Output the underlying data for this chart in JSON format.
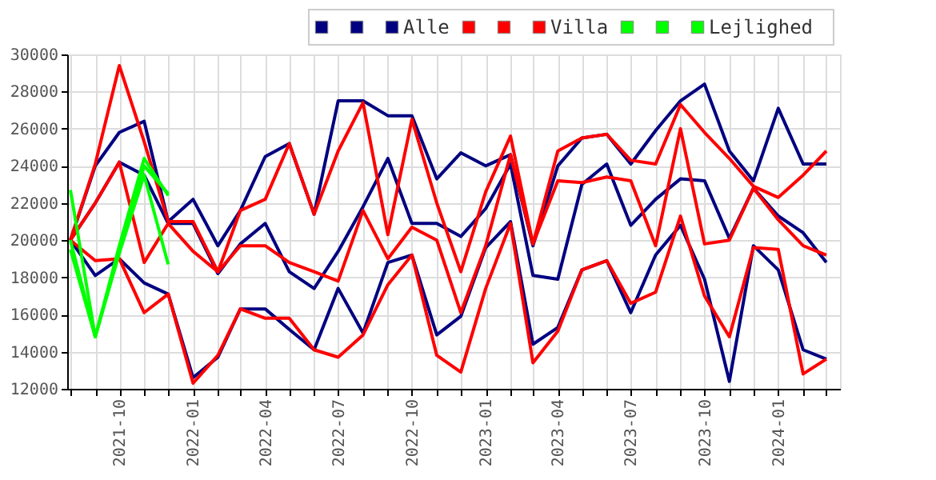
{
  "chart_data": {
    "type": "line",
    "x": [
      "2021-08",
      "2021-09",
      "2021-10",
      "2021-11",
      "2021-12",
      "2022-01",
      "2022-02",
      "2022-03",
      "2022-04",
      "2022-05",
      "2022-06",
      "2022-07",
      "2022-08",
      "2022-09",
      "2022-10",
      "2022-11",
      "2022-12",
      "2023-01",
      "2023-02",
      "2023-03",
      "2023-04",
      "2023-05",
      "2023-06",
      "2023-07",
      "2023-08",
      "2023-09",
      "2023-10",
      "2023-11",
      "2023-12",
      "2024-01",
      "2024-02",
      "2024-03"
    ],
    "series": [
      {
        "color": "#000080",
        "values": [
          20000,
          24000,
          25800,
          26400,
          21000,
          22200,
          19700,
          21600,
          24500,
          25200,
          21400,
          27500,
          27500,
          26700,
          26700,
          23300,
          24700,
          24000,
          24600,
          19700,
          24000,
          25500,
          25700,
          24100,
          25900,
          27500,
          28400,
          24800,
          23200,
          27100,
          24100,
          24100
        ]
      },
      {
        "color": "#000080",
        "values": [
          20000,
          22000,
          24200,
          23500,
          20900,
          20900,
          18200,
          19800,
          20900,
          18300,
          17400,
          19400,
          21800,
          24400,
          20900,
          20900,
          20200,
          21700,
          24100,
          18100,
          17900,
          23000,
          24100,
          20800,
          22200,
          23300,
          23200,
          20100,
          22800,
          21300,
          20400,
          18800
        ]
      },
      {
        "name": "Alle",
        "color": "#000080",
        "values": [
          20000,
          18100,
          19000,
          17700,
          17100,
          12600,
          13700,
          16300,
          16300,
          15200,
          14100,
          17400,
          15000,
          18800,
          19200,
          14900,
          15900,
          19600,
          21000,
          14400,
          15300,
          18400,
          18900,
          16100,
          19200,
          20800,
          17900,
          12400,
          19700,
          18400,
          14100,
          13600
        ]
      },
      {
        "color": "#ff0000",
        "values": [
          20000,
          24100,
          29400,
          25300,
          21000,
          21000,
          18300,
          21600,
          22200,
          25200,
          21400,
          24800,
          27400,
          20300,
          26500,
          22000,
          18300,
          22600,
          25600,
          19800,
          24800,
          25500,
          25700,
          24300,
          24100,
          27300,
          25800,
          24400,
          22900,
          22300,
          23500,
          24800
        ]
      },
      {
        "color": "#ff0000",
        "values": [
          20000,
          22000,
          24200,
          18800,
          20900,
          19400,
          18300,
          19700,
          19700,
          18800,
          18300,
          17800,
          21600,
          19000,
          20700,
          20000,
          16100,
          19700,
          24600,
          19800,
          23200,
          23100,
          23400,
          23200,
          19700,
          26000,
          19800,
          20000,
          22800,
          21100,
          19700,
          19200
        ]
      },
      {
        "name": "Villa",
        "color": "#ff0000",
        "values": [
          20000,
          18900,
          19000,
          16100,
          17100,
          12300,
          13800,
          16300,
          15800,
          15800,
          14100,
          13700,
          14900,
          17600,
          19200,
          13800,
          12900,
          17400,
          20900,
          13400,
          15100,
          18400,
          18900,
          16600,
          17200,
          21300,
          17000,
          14800,
          19600,
          19500,
          12800,
          13600
        ]
      },
      {
        "color": "#00ff00",
        "x": [
          "2021-08",
          "2021-09",
          "2021-10",
          "2021-11",
          "2021-12"
        ],
        "values": [
          22700,
          14800,
          19700,
          24400,
          22400
        ]
      },
      {
        "color": "#00ff00",
        "x": [
          "2021-08",
          "2021-09",
          "2021-10",
          "2021-11",
          "2021-12"
        ],
        "values": [
          20000,
          14800,
          19500,
          24000,
          22500
        ]
      },
      {
        "name": "Lejlighed",
        "color": "#00ff00",
        "x": [
          "2021-08",
          "2021-09",
          "2021-10",
          "2021-11",
          "2021-12"
        ],
        "values": [
          19500,
          14800,
          19300,
          23500,
          18700
        ]
      }
    ],
    "xlim": [
      "2021-07-28",
      "2024-03-18"
    ],
    "xticks": [
      {
        "value": "2021-08",
        "label": null
      },
      {
        "value": "2021-09",
        "label": null
      },
      "2021-10",
      {
        "value": "2021-11",
        "label": null
      },
      {
        "value": "2021-12",
        "label": null
      },
      "2022-01",
      {
        "value": "2022-02",
        "label": null
      },
      {
        "value": "2022-03",
        "label": null
      },
      "2022-04",
      {
        "value": "2022-05",
        "label": null
      },
      {
        "value": "2022-06",
        "label": null
      },
      "2022-07",
      {
        "value": "2022-08",
        "label": null
      },
      {
        "value": "2022-09",
        "label": null
      },
      "2022-10",
      {
        "value": "2022-11",
        "label": null
      },
      {
        "value": "2022-12",
        "label": null
      },
      "2023-01",
      {
        "value": "2023-02",
        "label": null
      },
      {
        "value": "2023-03",
        "label": null
      },
      "2023-04",
      {
        "value": "2023-05",
        "label": null
      },
      {
        "value": "2023-06",
        "label": null
      },
      "2023-07",
      {
        "value": "2023-08",
        "label": null
      },
      {
        "value": "2023-09",
        "label": null
      },
      "2023-10",
      {
        "value": "2023-11",
        "label": null
      },
      {
        "value": "2023-12",
        "label": null
      },
      "2024-01",
      {
        "value": "2024-02",
        "label": null
      },
      {
        "value": "2024-03",
        "label": null
      }
    ],
    "ylim": [
      12000,
      30000
    ],
    "yticks": [
      12000,
      14000,
      16000,
      18000,
      20000,
      22000,
      24000,
      26000,
      28000,
      30000
    ],
    "grid": true,
    "legend": "top right",
    "marker": "none",
    "line_style": "solid"
  }
}
